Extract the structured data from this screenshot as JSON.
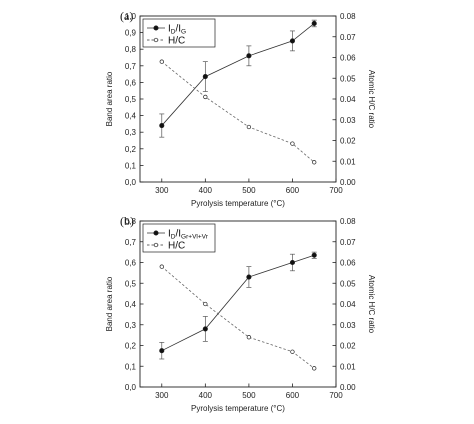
{
  "chart_data": [
    {
      "type": "line",
      "panel_label": "(a)",
      "xlabel": "Pyrolysis temperature (°C)",
      "ylabel": "Band area ratio",
      "y2label": "Atomic H/C ratio",
      "xlim": [
        250,
        700
      ],
      "ylim": [
        0.0,
        1.0
      ],
      "y2lim": [
        0.0,
        0.08
      ],
      "x_ticks": [
        "300",
        "400",
        "500",
        "600",
        "700"
      ],
      "y_ticks": [
        "0,0",
        "0,1",
        "0,2",
        "0,3",
        "0,4",
        "0,5",
        "0,6",
        "0,7",
        "0,8",
        "0,9",
        "1,0"
      ],
      "y2_ticks": [
        "0.00",
        "0.01",
        "0.02",
        "0.03",
        "0.04",
        "0.05",
        "0.06",
        "0.07",
        "0.08"
      ],
      "legend_position": "top-left",
      "series": [
        {
          "name_main": "I",
          "name_sub1": "D",
          "name_mid": "/I",
          "name_sub2": "G",
          "axis": "left",
          "style": "solid-filled-circle",
          "x": [
            300,
            400,
            500,
            600,
            650
          ],
          "y": [
            0.34,
            0.635,
            0.76,
            0.85,
            0.955
          ],
          "err": [
            0.07,
            0.09,
            0.06,
            0.06,
            0.02
          ]
        },
        {
          "name": "H/C",
          "axis": "right",
          "style": "dashed-open-circle",
          "x": [
            300,
            400,
            500,
            600,
            650
          ],
          "y": [
            0.058,
            0.041,
            0.0265,
            0.0185,
            0.0095
          ]
        }
      ]
    },
    {
      "type": "line",
      "panel_label": "(b)",
      "xlabel": "Pyrolysis temperature (°C)",
      "ylabel": "Band area ratio",
      "y2label": "Atomic H/C ratio",
      "xlim": [
        250,
        700
      ],
      "ylim": [
        0.0,
        0.8
      ],
      "y2lim": [
        0.0,
        0.08
      ],
      "x_ticks": [
        "300",
        "400",
        "500",
        "600",
        "700"
      ],
      "y_ticks": [
        "0,0",
        "0,1",
        "0,2",
        "0,3",
        "0,4",
        "0,5",
        "0,6",
        "0,7",
        "0,8"
      ],
      "y2_ticks": [
        "0.00",
        "0.01",
        "0.02",
        "0.03",
        "0.04",
        "0.05",
        "0.06",
        "0.07",
        "0.08"
      ],
      "legend_position": "top-left",
      "series": [
        {
          "name_main": "I",
          "name_sub1": "D",
          "name_mid": "/I",
          "name_sub2": "Gr+Vl+Vr",
          "axis": "left",
          "style": "solid-filled-circle",
          "x": [
            300,
            400,
            500,
            600,
            650
          ],
          "y": [
            0.175,
            0.28,
            0.53,
            0.6,
            0.635
          ],
          "err": [
            0.04,
            0.06,
            0.05,
            0.04,
            0.015
          ]
        },
        {
          "name": "H/C",
          "axis": "right",
          "style": "dashed-open-circle",
          "x": [
            300,
            400,
            500,
            600,
            650
          ],
          "y": [
            0.058,
            0.04,
            0.024,
            0.017,
            0.009
          ]
        }
      ]
    }
  ]
}
